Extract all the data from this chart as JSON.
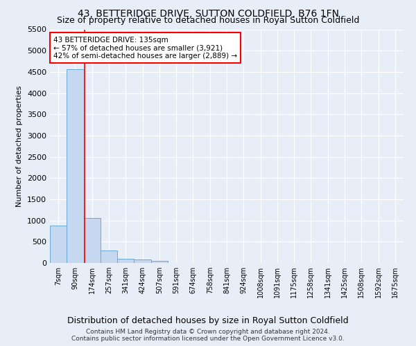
{
  "title": "43, BETTERIDGE DRIVE, SUTTON COLDFIELD, B76 1FN",
  "subtitle": "Size of property relative to detached houses in Royal Sutton Coldfield",
  "xlabel": "Distribution of detached houses by size in Royal Sutton Coldfield",
  "ylabel": "Number of detached properties",
  "footer1": "Contains HM Land Registry data © Crown copyright and database right 2024.",
  "footer2": "Contains public sector information licensed under the Open Government Licence v3.0.",
  "annotation_line1": "43 BETTERIDGE DRIVE: 135sqm",
  "annotation_line2": "← 57% of detached houses are smaller (3,921)",
  "annotation_line3": "42% of semi-detached houses are larger (2,889) →",
  "bar_labels": [
    "7sqm",
    "90sqm",
    "174sqm",
    "257sqm",
    "341sqm",
    "424sqm",
    "507sqm",
    "591sqm",
    "674sqm",
    "758sqm",
    "841sqm",
    "924sqm",
    "1008sqm",
    "1091sqm",
    "1175sqm",
    "1258sqm",
    "1341sqm",
    "1425sqm",
    "1508sqm",
    "1592sqm",
    "1675sqm"
  ],
  "bar_values": [
    880,
    4560,
    1060,
    290,
    90,
    80,
    50,
    0,
    0,
    0,
    0,
    0,
    0,
    0,
    0,
    0,
    0,
    0,
    0,
    0,
    0
  ],
  "bar_color": "#c5d8f0",
  "bar_edge_color": "#6aaad4",
  "red_line_x": 1.55,
  "ylim": [
    0,
    5500
  ],
  "yticks": [
    0,
    500,
    1000,
    1500,
    2000,
    2500,
    3000,
    3500,
    4000,
    4500,
    5000,
    5500
  ],
  "background_color": "#e8eef8",
  "plot_background": "#e8eef8",
  "grid_color": "#ffffff",
  "title_fontsize": 10,
  "subtitle_fontsize": 9
}
